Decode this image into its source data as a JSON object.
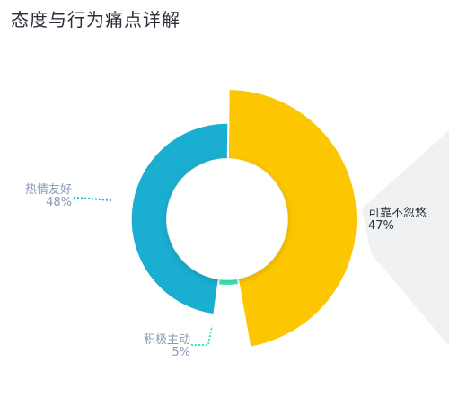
{
  "title": "态度与行为痛点详解",
  "chart_data": {
    "type": "pie",
    "variant": "donut-rose",
    "slices": [
      {
        "label": "可靠不忽悠",
        "value": 47,
        "percent_text": "47%",
        "color": "#fcc600",
        "radius_ratio": 1.0
      },
      {
        "label": "积极主动",
        "value": 5,
        "percent_text": "5%",
        "color": "#3ee6b6",
        "radius_ratio": 0.51
      },
      {
        "label": "热情友好",
        "value": 48,
        "percent_text": "48%",
        "color": "#1aaed1",
        "radius_ratio": 0.74
      }
    ],
    "callout_color": "#f0f1f3"
  }
}
